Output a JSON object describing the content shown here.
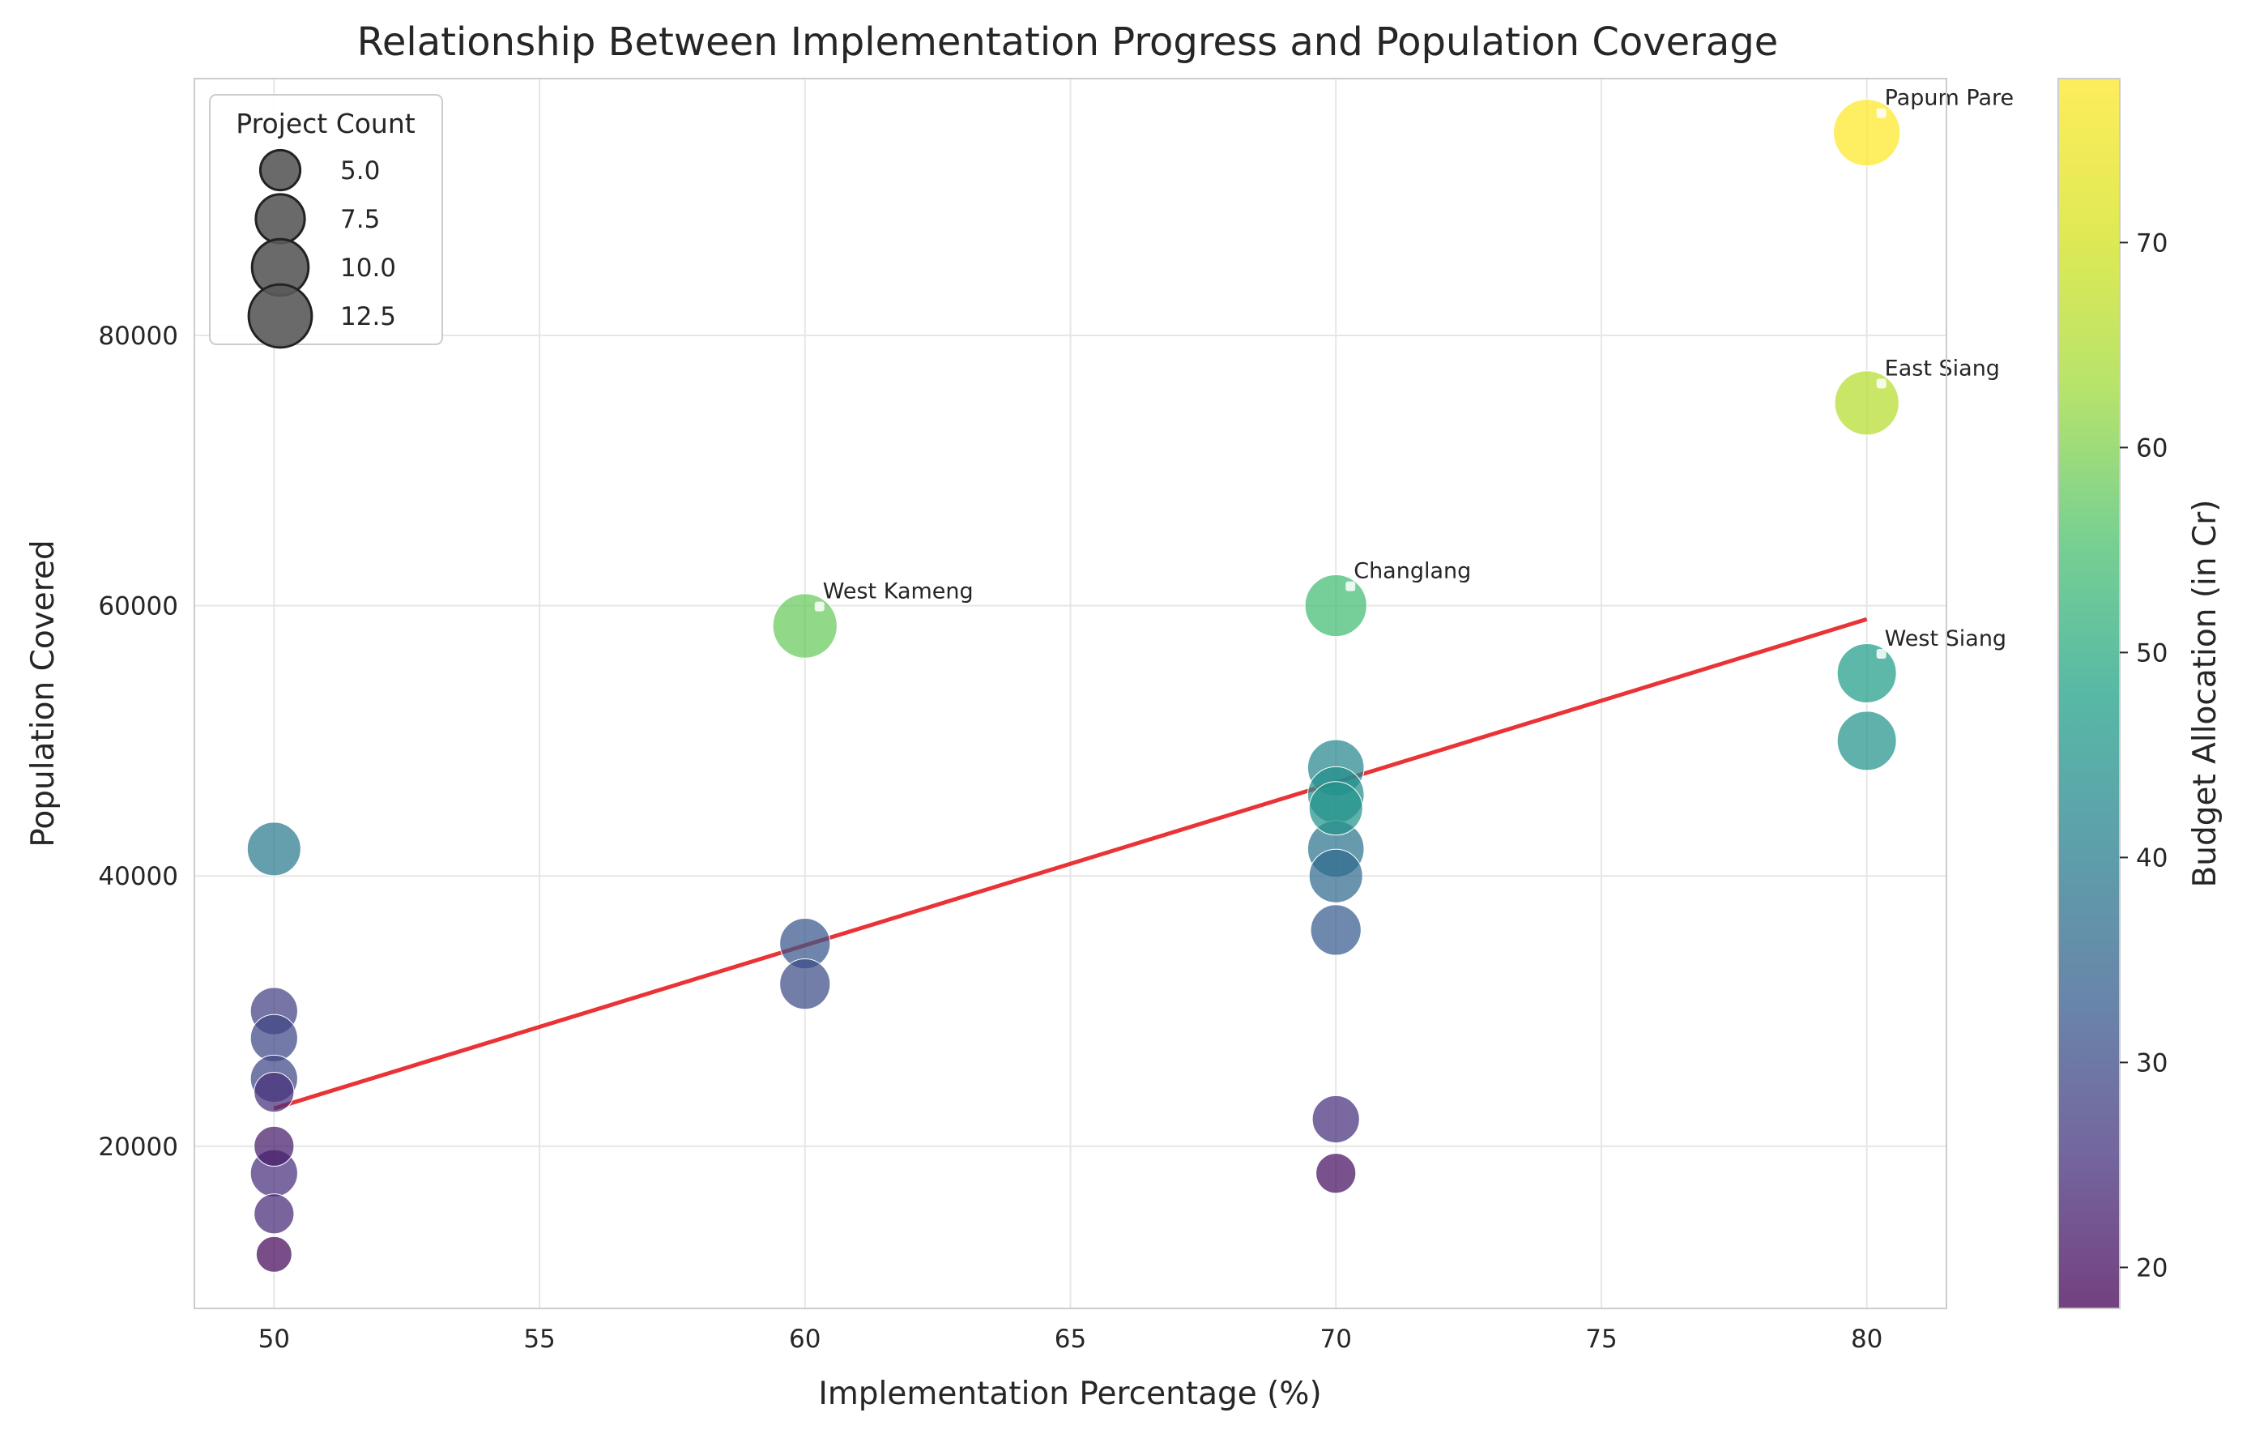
{
  "chart_data": {
    "type": "scatter",
    "title": "Relationship Between Implementation Progress and Population Coverage",
    "xlabel": "Implementation Percentage (%)",
    "ylabel": "Population Covered",
    "xlim": [
      48.5,
      81.5
    ],
    "ylim": [
      8000,
      99000
    ],
    "xticks": [
      50,
      55,
      60,
      65,
      70,
      75,
      80
    ],
    "yticks": [
      20000,
      40000,
      60000,
      80000
    ],
    "grid": true,
    "colormap": "viridis",
    "colorbar": {
      "label": "Budget Allocation (in Cr)",
      "range": [
        18,
        78
      ],
      "ticks": [
        20,
        30,
        40,
        50,
        60,
        70
      ]
    },
    "size_legend": {
      "title": "Project Count",
      "placement": "top-left",
      "entries": [
        "5.0",
        "7.5",
        "10.0",
        "12.5"
      ],
      "entry_values": [
        5,
        7.5,
        10,
        12.5
      ]
    },
    "trend_line": {
      "color": "#e8282b",
      "x": [
        50,
        80
      ],
      "y": [
        22800,
        59000
      ]
    },
    "points": [
      {
        "x": 80,
        "y": 95000,
        "budget": 78,
        "projects": 14,
        "label": "Papum Pare"
      },
      {
        "x": 80,
        "y": 75000,
        "budget": 66,
        "projects": 13,
        "label": "East Siang"
      },
      {
        "x": 80,
        "y": 55000,
        "budget": 47,
        "projects": 11,
        "label": "West Siang"
      },
      {
        "x": 80,
        "y": 50000,
        "budget": 45,
        "projects": 11
      },
      {
        "x": 70,
        "y": 60000,
        "budget": 54,
        "projects": 12,
        "label": "Changlang"
      },
      {
        "x": 60,
        "y": 58500,
        "budget": 58,
        "projects": 13,
        "label": "West Kameng"
      },
      {
        "x": 70,
        "y": 48000,
        "budget": 42,
        "projects": 10
      },
      {
        "x": 70,
        "y": 46000,
        "budget": 44,
        "projects": 10
      },
      {
        "x": 70,
        "y": 45000,
        "budget": 45,
        "projects": 9
      },
      {
        "x": 70,
        "y": 42000,
        "budget": 38,
        "projects": 10
      },
      {
        "x": 70,
        "y": 40000,
        "budget": 36,
        "projects": 9
      },
      {
        "x": 70,
        "y": 36000,
        "budget": 33,
        "projects": 8
      },
      {
        "x": 50,
        "y": 42000,
        "budget": 39,
        "projects": 9
      },
      {
        "x": 60,
        "y": 35000,
        "budget": 32,
        "projects": 8
      },
      {
        "x": 60,
        "y": 32000,
        "budget": 30,
        "projects": 8
      },
      {
        "x": 50,
        "y": 30000,
        "budget": 28,
        "projects": 7
      },
      {
        "x": 50,
        "y": 28000,
        "budget": 29,
        "projects": 7
      },
      {
        "x": 50,
        "y": 25000,
        "budget": 29,
        "projects": 7
      },
      {
        "x": 50,
        "y": 24000,
        "budget": 25,
        "projects": 5
      },
      {
        "x": 70,
        "y": 22000,
        "budget": 25,
        "projects": 7
      },
      {
        "x": 50,
        "y": 20000,
        "budget": 22,
        "projects": 5
      },
      {
        "x": 50,
        "y": 18000,
        "budget": 25,
        "projects": 7
      },
      {
        "x": 70,
        "y": 18000,
        "budget": 20,
        "projects": 5
      },
      {
        "x": 50,
        "y": 15000,
        "budget": 24,
        "projects": 5
      },
      {
        "x": 50,
        "y": 12000,
        "budget": 19,
        "projects": 4
      }
    ]
  }
}
